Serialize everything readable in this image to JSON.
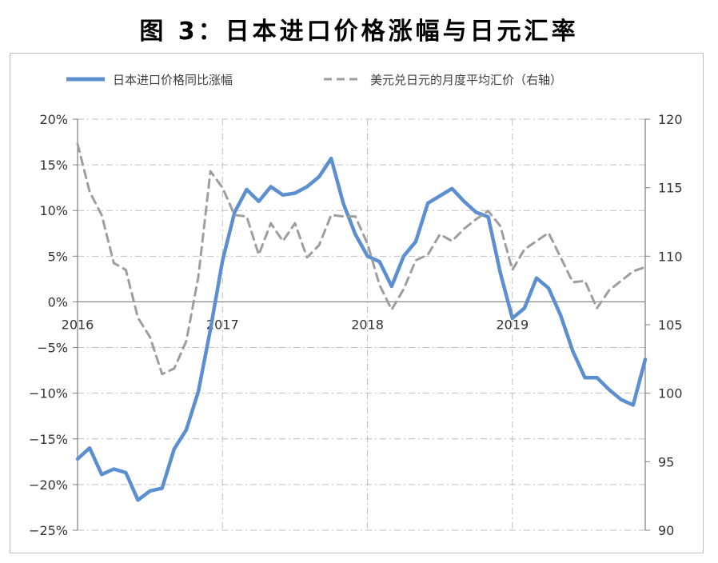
{
  "title": "图 3：日本进口价格涨幅与日元汇率",
  "colors": {
    "primary": "#5b8fd0",
    "secondary": "#9e9e9e",
    "axis": "#7f7f7f",
    "grid": "#bfbfbf"
  },
  "chart_data": {
    "type": "line",
    "grid": true,
    "legend_position": "top",
    "left_axis": {
      "ylim": [
        -25,
        20
      ],
      "ticks": [
        "20%",
        "15%",
        "10%",
        "5%",
        "0%",
        "−5%",
        "−10%",
        "−15%",
        "−20%",
        "−25%"
      ],
      "tick_values": [
        20,
        15,
        10,
        5,
        0,
        -5,
        -10,
        -15,
        -20,
        -25
      ]
    },
    "right_axis": {
      "ylim": [
        90,
        120
      ],
      "ticks": [
        "120",
        "115",
        "110",
        "105",
        "100",
        "95",
        "90"
      ],
      "tick_values": [
        120,
        115,
        110,
        105,
        100,
        95,
        90
      ]
    },
    "x_axis": {
      "labels": [
        "2016",
        "2017",
        "2018",
        "2019"
      ],
      "label_positions": [
        0,
        12,
        24,
        36
      ],
      "xlim": [
        0,
        47
      ]
    },
    "series": [
      {
        "name": "日本进口价格同比涨幅",
        "axis": "left",
        "style": "solid",
        "values": [
          -17.2,
          -16.0,
          -18.9,
          -18.3,
          -18.7,
          -21.7,
          -20.7,
          -20.4,
          -16.1,
          -14.0,
          -9.8,
          -3.0,
          4.5,
          9.8,
          12.3,
          11.0,
          12.6,
          11.7,
          11.9,
          12.6,
          13.7,
          15.7,
          10.8,
          7.4,
          5.0,
          4.4,
          1.7,
          5.0,
          6.6,
          10.8,
          11.6,
          12.4,
          11.0,
          9.8,
          9.3,
          3.2,
          -1.8,
          -0.7,
          2.6,
          1.5,
          -1.5,
          -5.4,
          -8.3,
          -8.3,
          -9.6,
          -10.7,
          -11.3,
          -6.3
        ]
      },
      {
        "name": "美元兑日元的月度平均汇价（右轴）",
        "axis": "right",
        "style": "dashed",
        "values": [
          118.2,
          114.7,
          113.0,
          109.5,
          109.0,
          105.5,
          104.1,
          101.4,
          101.8,
          103.8,
          108.5,
          116.2,
          115.0,
          113.0,
          112.9,
          110.1,
          112.4,
          111.1,
          112.4,
          109.9,
          110.8,
          113.0,
          112.9,
          112.9,
          110.9,
          107.9,
          106.1,
          107.6,
          109.7,
          110.1,
          111.6,
          111.1,
          112.0,
          112.7,
          113.3,
          112.2,
          109.0,
          110.5,
          111.1,
          111.7,
          109.9,
          108.1,
          108.2,
          106.2,
          107.5,
          108.2,
          108.9,
          109.2
        ]
      }
    ]
  }
}
